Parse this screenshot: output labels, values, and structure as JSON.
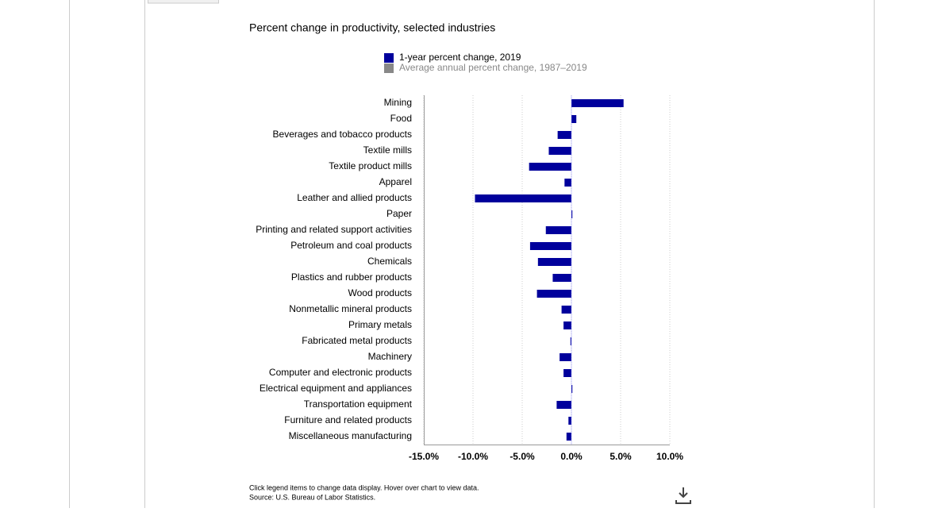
{
  "chart_data": {
    "type": "bar",
    "orientation": "horizontal",
    "title": "Percent change in productivity, selected industries",
    "categories": [
      "Mining",
      "Food",
      "Beverages and tobacco products",
      "Textile mills",
      "Textile product mills",
      "Apparel",
      "Leather and allied products",
      "Paper",
      "Printing and related support activities",
      "Petroleum and coal products",
      "Chemicals",
      "Plastics and rubber products",
      "Wood products",
      "Nonmetallic mineral products",
      "Primary metals",
      "Fabricated metal products",
      "Machinery",
      "Computer and electronic products",
      "Electrical equipment and appliances",
      "Transportation equipment",
      "Furniture and related products",
      "Miscellaneous manufacturing"
    ],
    "series": [
      {
        "name": "1-year percent change, 2019",
        "color": "#00009c",
        "values": [
          5.3,
          0.5,
          -1.4,
          -2.3,
          -4.3,
          -0.7,
          -9.8,
          0.1,
          -2.6,
          -4.2,
          -3.4,
          -1.9,
          -3.5,
          -1.0,
          -0.8,
          -0.1,
          -1.2,
          -0.8,
          0.1,
          -1.5,
          -0.3,
          -0.5
        ]
      }
    ],
    "inactive_legend": [
      {
        "name": "Average annual percent change, 1987–2019",
        "color": "#888888"
      }
    ],
    "xlim": [
      -15,
      10
    ],
    "xticks": [
      {
        "value": -15,
        "label": "-15.0%"
      },
      {
        "value": -10,
        "label": "-10.0%"
      },
      {
        "value": -5,
        "label": "-5.0%"
      },
      {
        "value": 0,
        "label": "0.0%"
      },
      {
        "value": 5,
        "label": "5.0%"
      },
      {
        "value": 10,
        "label": "10.0%"
      }
    ],
    "grid": true,
    "notes": [
      "Click legend items to change data display. Hover over chart to view data.",
      "Source: U.S. Bureau of Labor Statistics."
    ]
  }
}
